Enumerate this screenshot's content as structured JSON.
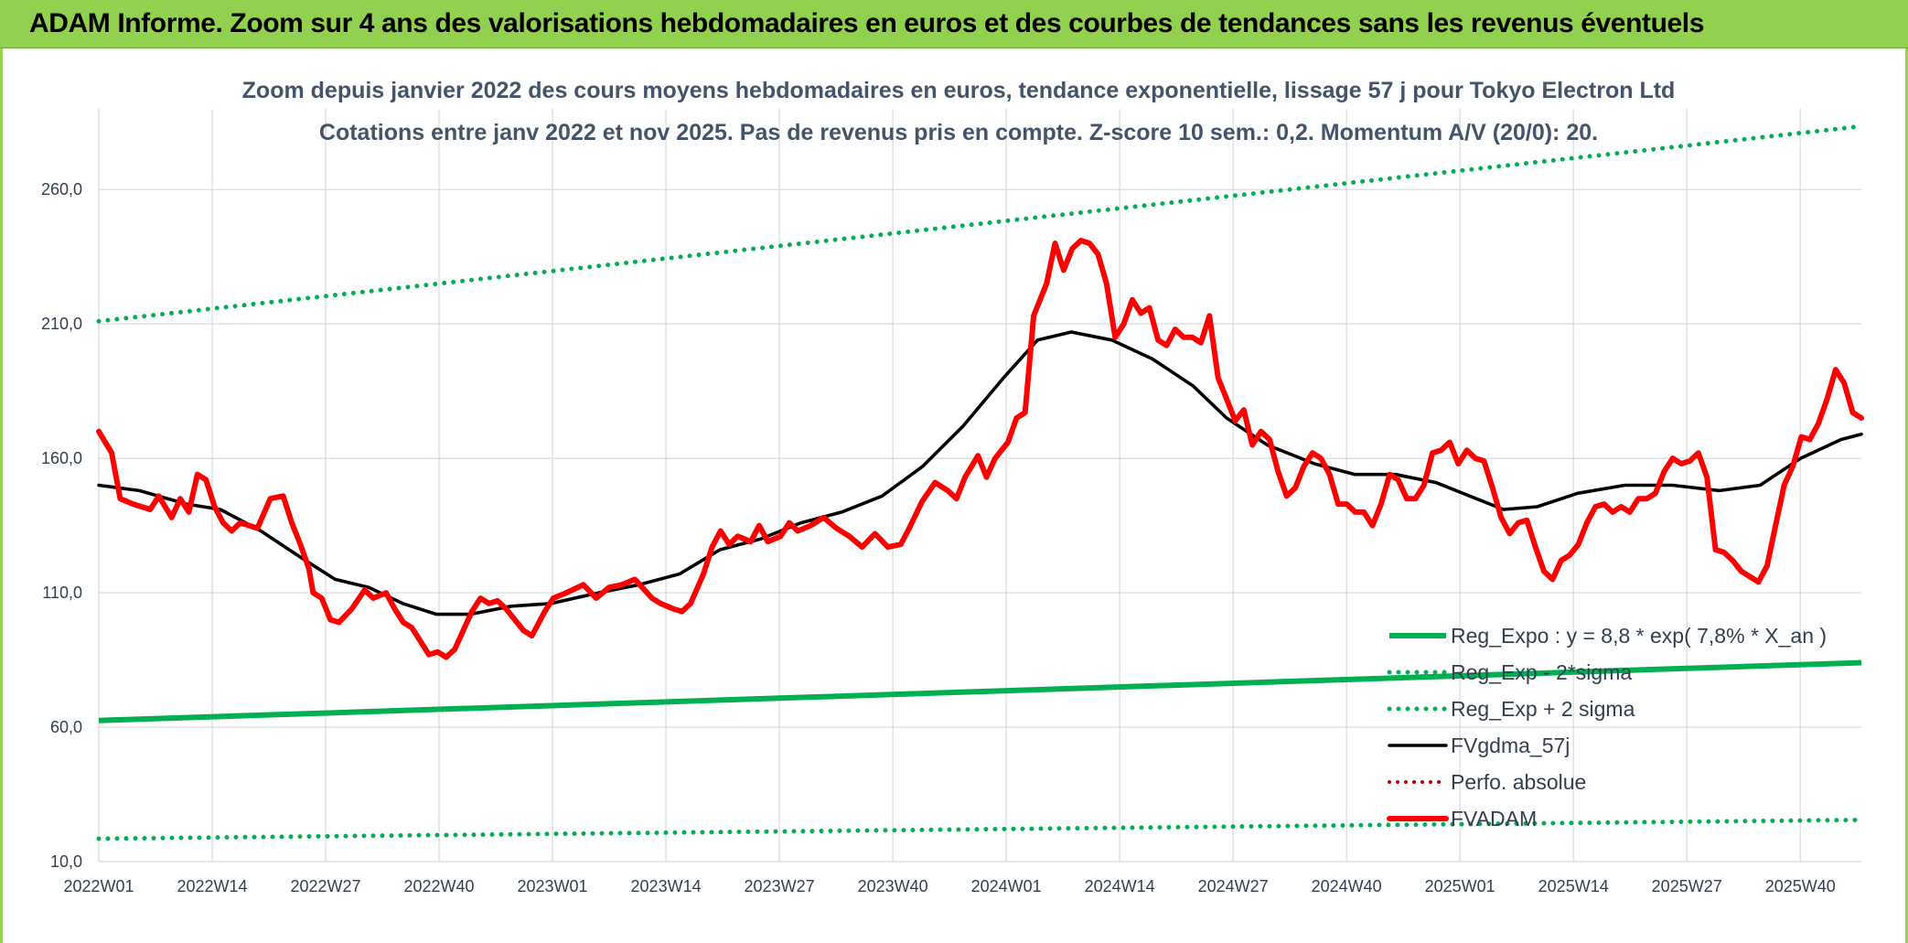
{
  "banner": {
    "title": "ADAM Informe. Zoom sur 4 ans des valorisations hebdomadaires en euros et des courbes de tendances sans les revenus éventuels",
    "background": "#92d050"
  },
  "chart_data": {
    "type": "line",
    "title": "Zoom depuis janvier 2022 des cours moyens hebdomadaires en euros, tendance exponentielle, lissage 57 j pour Tokyo Electron Ltd",
    "subtitle": "Cotations entre janv 2022 et nov 2025. Pas de revenus pris en compte. Z-score 10 sem.: 0,2. Momentum A/V (20/0): 20.",
    "xlabel": "",
    "ylabel": "",
    "x_tick_labels": [
      "2022W01",
      "2022W14",
      "2022W27",
      "2022W40",
      "2023W01",
      "2023W14",
      "2023W27",
      "2023W40",
      "2024W01",
      "2024W14",
      "2024W27",
      "2024W40",
      "2025W01",
      "2025W14",
      "2025W27",
      "2025W40"
    ],
    "y_tick_labels": [
      "10,0",
      "60,0",
      "110,0",
      "160,0",
      "210,0",
      "260,0"
    ],
    "y_ticks": [
      10,
      60,
      110,
      160,
      210,
      260
    ],
    "ylim": [
      10,
      290
    ],
    "week_count": 202,
    "grid": true,
    "legend_position": "bottom-right",
    "series": [
      {
        "name": "Reg_Expo : y = 8,8 * exp( 7,8% *  X_an )",
        "style": "solid",
        "color": "#00b050",
        "points": [
          [
            0,
            62.5
          ],
          [
            201,
            84.0
          ]
        ]
      },
      {
        "name": "Reg_Exp - 2*sigma",
        "style": "dotted",
        "color": "#00b050",
        "points": [
          [
            0,
            18.5
          ],
          [
            201,
            25.5
          ]
        ]
      },
      {
        "name": "Reg_Exp + 2 sigma",
        "style": "dotted",
        "color": "#00b050",
        "points": [
          [
            0,
            211.0
          ],
          [
            201,
            283.5
          ]
        ]
      },
      {
        "name": "FVgdma_57j",
        "style": "solid",
        "color": "#000000",
        "points": [
          [
            0,
            150
          ],
          [
            6,
            148
          ],
          [
            13,
            143
          ],
          [
            18,
            141
          ],
          [
            24,
            133
          ],
          [
            30,
            123
          ],
          [
            35,
            115
          ],
          [
            40,
            112
          ],
          [
            45,
            106
          ],
          [
            50,
            102
          ],
          [
            55,
            102
          ],
          [
            61,
            105
          ],
          [
            67,
            106
          ],
          [
            74,
            110
          ],
          [
            80,
            113
          ],
          [
            86,
            117
          ],
          [
            92,
            126
          ],
          [
            98,
            130
          ],
          [
            104,
            136
          ],
          [
            110,
            140
          ],
          [
            116,
            146
          ],
          [
            122,
            157
          ],
          [
            128,
            172
          ],
          [
            134,
            190
          ],
          [
            139,
            204
          ],
          [
            144,
            207
          ],
          [
            150,
            204
          ],
          [
            156,
            197
          ],
          [
            162,
            187
          ],
          [
            167,
            175
          ],
          [
            173,
            165
          ],
          [
            180,
            158
          ],
          [
            186,
            154
          ],
          [
            192,
            154
          ],
          [
            198,
            151
          ],
          [
            203,
            146
          ],
          [
            208,
            141
          ],
          [
            213,
            142
          ],
          [
            219,
            147
          ],
          [
            226,
            150
          ],
          [
            233,
            150
          ],
          [
            240,
            148
          ],
          [
            246,
            150
          ],
          [
            252,
            160
          ],
          [
            258,
            167
          ],
          [
            261,
            169
          ]
        ]
      },
      {
        "name": "Perfo. absolue",
        "style": "dotted",
        "color": "#c00000",
        "points": []
      },
      {
        "name": "FVADAM",
        "style": "solid",
        "color": "#ff0000",
        "points": [
          [
            0,
            170
          ],
          [
            3,
            162
          ],
          [
            5,
            145
          ],
          [
            8,
            143
          ],
          [
            12,
            141
          ],
          [
            14,
            146
          ],
          [
            17,
            138
          ],
          [
            19,
            145
          ],
          [
            21,
            140
          ],
          [
            23,
            154
          ],
          [
            25,
            152
          ],
          [
            27,
            142
          ],
          [
            29,
            136
          ],
          [
            31,
            133
          ],
          [
            33,
            136
          ],
          [
            37,
            134
          ],
          [
            40,
            145
          ],
          [
            43,
            146
          ],
          [
            45,
            136
          ],
          [
            47,
            128
          ],
          [
            49,
            119
          ],
          [
            50,
            110
          ],
          [
            52,
            108
          ],
          [
            54,
            100
          ],
          [
            56,
            99
          ],
          [
            59,
            104
          ],
          [
            62,
            111
          ],
          [
            64,
            108
          ],
          [
            67,
            110
          ],
          [
            69,
            104
          ],
          [
            71,
            99
          ],
          [
            73,
            97
          ],
          [
            75,
            92
          ],
          [
            77,
            87
          ],
          [
            79,
            88
          ],
          [
            81,
            86
          ],
          [
            83,
            89
          ],
          [
            85,
            96
          ],
          [
            87,
            103
          ],
          [
            89,
            108
          ],
          [
            91,
            106
          ],
          [
            93,
            107
          ],
          [
            95,
            104
          ],
          [
            97,
            100
          ],
          [
            99,
            96
          ],
          [
            101,
            94
          ],
          [
            104,
            103
          ],
          [
            106,
            108
          ],
          [
            109,
            110
          ],
          [
            113,
            113
          ],
          [
            116,
            108
          ],
          [
            119,
            112
          ],
          [
            122,
            113
          ],
          [
            125,
            115
          ],
          [
            129,
            108
          ],
          [
            131,
            106
          ],
          [
            134,
            104
          ],
          [
            136,
            103
          ],
          [
            138,
            106
          ],
          [
            141,
            117
          ],
          [
            143,
            127
          ],
          [
            145,
            133
          ],
          [
            147,
            128
          ],
          [
            149,
            131
          ],
          [
            152,
            129
          ],
          [
            154,
            135
          ],
          [
            156,
            129
          ],
          [
            159,
            131
          ],
          [
            161,
            136
          ],
          [
            163,
            133
          ],
          [
            166,
            135
          ],
          [
            169,
            138
          ],
          [
            172,
            134
          ],
          [
            175,
            131
          ],
          [
            178,
            127
          ],
          [
            181,
            132
          ],
          [
            184,
            127
          ],
          [
            187,
            128
          ],
          [
            189,
            134
          ],
          [
            192,
            144
          ],
          [
            195,
            151
          ],
          [
            198,
            148
          ],
          [
            200,
            145
          ],
          [
            202,
            153
          ],
          [
            205,
            161
          ],
          [
            207,
            153
          ],
          [
            209,
            160
          ],
          [
            212,
            166
          ],
          [
            214,
            175
          ],
          [
            216,
            177
          ],
          [
            218,
            213
          ],
          [
            221,
            225
          ],
          [
            223,
            240
          ],
          [
            225,
            230
          ],
          [
            227,
            238
          ],
          [
            229,
            241
          ],
          [
            231,
            240
          ],
          [
            233,
            236
          ],
          [
            235,
            225
          ],
          [
            237,
            205
          ],
          [
            239,
            210
          ],
          [
            241,
            219
          ],
          [
            243,
            214
          ],
          [
            245,
            216
          ],
          [
            247,
            204
          ],
          [
            249,
            202
          ],
          [
            251,
            208
          ],
          [
            253,
            205
          ],
          [
            255,
            205
          ],
          [
            257,
            203
          ],
          [
            259,
            213
          ],
          [
            261,
            190
          ],
          [
            263,
            182
          ],
          [
            265,
            174
          ],
          [
            267,
            178
          ],
          [
            269,
            165
          ],
          [
            271,
            170
          ],
          [
            273,
            167
          ],
          [
            275,
            155
          ],
          [
            277,
            146
          ],
          [
            279,
            149
          ],
          [
            281,
            157
          ],
          [
            283,
            162
          ],
          [
            285,
            160
          ],
          [
            287,
            154
          ],
          [
            289,
            143
          ],
          [
            291,
            143
          ],
          [
            293,
            140
          ],
          [
            295,
            140
          ],
          [
            297,
            135
          ],
          [
            299,
            143
          ],
          [
            301,
            154
          ],
          [
            303,
            152
          ],
          [
            305,
            145
          ],
          [
            307,
            145
          ],
          [
            309,
            150
          ],
          [
            311,
            162
          ],
          [
            313,
            163
          ],
          [
            315,
            166
          ],
          [
            317,
            158
          ],
          [
            319,
            163
          ],
          [
            321,
            160
          ],
          [
            323,
            159
          ],
          [
            325,
            149
          ],
          [
            327,
            138
          ],
          [
            329,
            132
          ],
          [
            331,
            136
          ],
          [
            333,
            137
          ],
          [
            335,
            127
          ],
          [
            337,
            118
          ],
          [
            339,
            115
          ],
          [
            341,
            122
          ],
          [
            343,
            124
          ],
          [
            345,
            128
          ],
          [
            347,
            136
          ],
          [
            349,
            142
          ],
          [
            351,
            143
          ],
          [
            353,
            140
          ],
          [
            355,
            142
          ],
          [
            357,
            140
          ],
          [
            359,
            145
          ],
          [
            361,
            145
          ],
          [
            363,
            147
          ],
          [
            365,
            155
          ],
          [
            367,
            160
          ],
          [
            369,
            158
          ],
          [
            371,
            159
          ],
          [
            373,
            162
          ],
          [
            375,
            153
          ],
          [
            377,
            126
          ],
          [
            379,
            125
          ],
          [
            381,
            122
          ],
          [
            383,
            118
          ],
          [
            385,
            116
          ],
          [
            387,
            114
          ],
          [
            389,
            120
          ],
          [
            391,
            135
          ],
          [
            393,
            150
          ],
          [
            395,
            157
          ],
          [
            397,
            168
          ],
          [
            399,
            167
          ],
          [
            401,
            173
          ],
          [
            403,
            182
          ],
          [
            405,
            193
          ],
          [
            407,
            188
          ],
          [
            409,
            177
          ],
          [
            411,
            175
          ]
        ]
      }
    ]
  }
}
